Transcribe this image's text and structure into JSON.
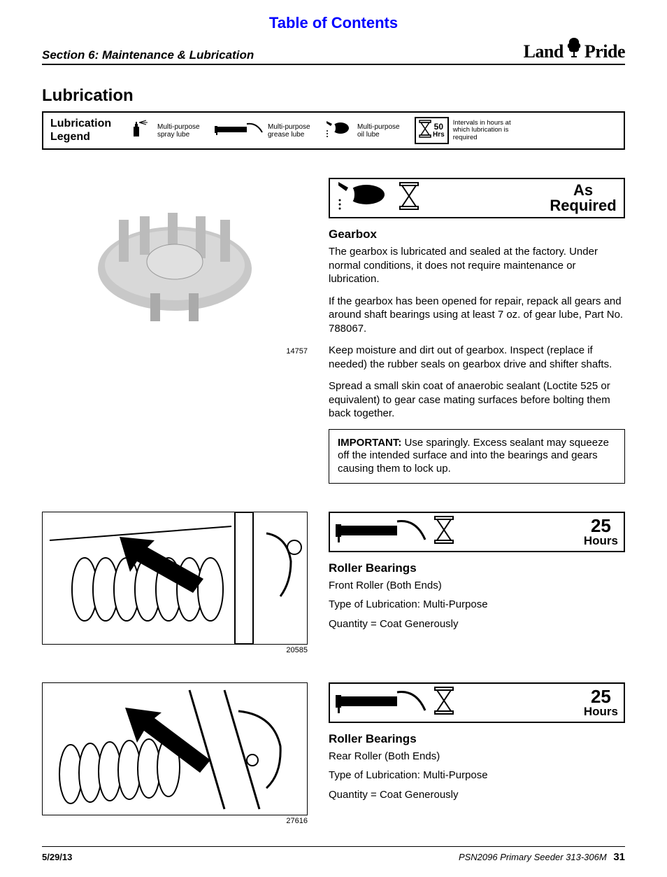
{
  "header": {
    "toc_link": "Table of Contents",
    "section_title": "Section 6: Maintenance & Lubrication",
    "brand_left": "Land",
    "brand_right": "Pride"
  },
  "h1": "Lubrication",
  "legend": {
    "title_l1": "Lubrication",
    "title_l2": "Legend",
    "spray": "Multi-purpose spray lube",
    "grease": "Multi-purpose grease lube",
    "oil": "Multi-purpose oil lube",
    "interval_num": "50",
    "interval_unit": "Hrs",
    "interval_text": "Intervals in hours at which lubrication is required"
  },
  "gearbox": {
    "image_num": "14757",
    "banner_label": "As Required",
    "heading": "Gearbox",
    "p1": "The gearbox is lubricated and sealed at the factory. Under normal conditions, it does not require maintenance or lubrication.",
    "p2": "If the gearbox has been opened for repair, repack all gears and around shaft bearings using at least 7 oz. of gear lube, Part No. 788067.",
    "p3": "Keep moisture and dirt out of gearbox. Inspect (replace if needed) the rubber seals on gearbox drive and shifter shafts.",
    "p4": "Spread a small skin coat of anaerobic sealant (Loctite 525 or equivalent) to gear case mating surfaces before bolting them back together.",
    "important_label": "IMPORTANT:",
    "important_text": "  Use sparingly. Excess sealant may squeeze off the intended surface and into the bearings and gears causing them to lock up."
  },
  "roller1": {
    "image_num": "20585",
    "banner_num": "25",
    "banner_unit": "Hours",
    "heading": "Roller Bearings",
    "line1": "Front Roller (Both Ends)",
    "line2": "Type of Lubrication: Multi-Purpose",
    "line3": "Quantity = Coat Generously"
  },
  "roller2": {
    "image_num": "27616",
    "banner_num": "25",
    "banner_unit": "Hours",
    "heading": "Roller Bearings",
    "line1": "Rear Roller (Both Ends)",
    "line2": "Type of Lubrication: Multi-Purpose",
    "line3": "Quantity = Coat Generously"
  },
  "footer": {
    "date": "5/29/13",
    "doc": "PSN2096 Primary Seeder   313-306M",
    "page": "31"
  },
  "colors": {
    "link_blue": "#0000ff",
    "text": "#000000",
    "border": "#000000"
  }
}
